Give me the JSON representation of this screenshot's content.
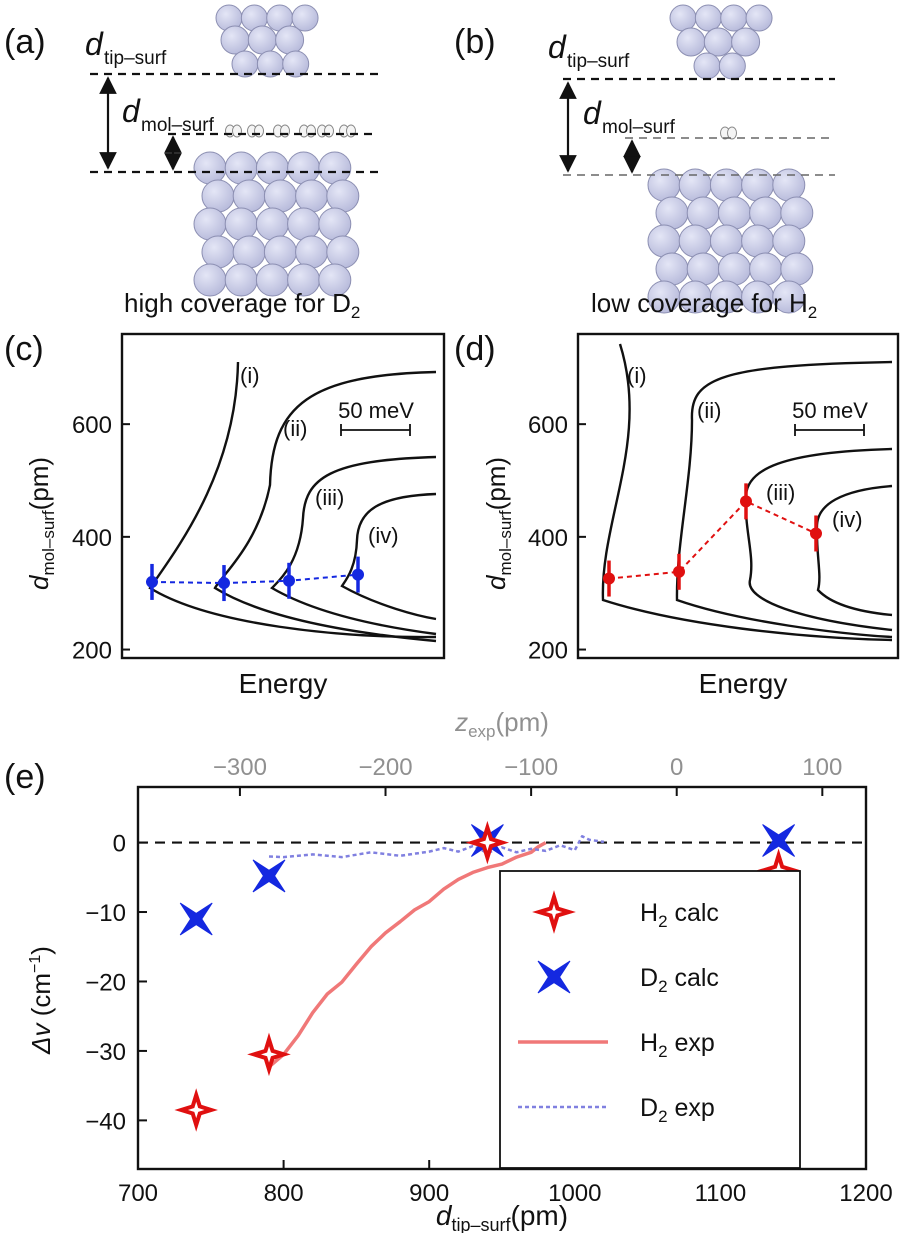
{
  "panels": {
    "a": {
      "label": "(a)",
      "caption": "high coverage for D",
      "caption_sub": "2"
    },
    "b": {
      "label": "(b)",
      "caption": "low coverage for H",
      "caption_sub": "2"
    },
    "c": {
      "label": "(c)"
    },
    "d": {
      "label": "(d)"
    },
    "e": {
      "label": "(e)"
    }
  },
  "symbols": {
    "d": "d",
    "tip_surf": "tip–surf",
    "mol_surf": "mol–surf"
  },
  "colors": {
    "atom_fill": "#c8cae6",
    "atom_stroke": "#8c8fb2",
    "red": "#e01010",
    "blue": "#1428e0",
    "h2_exp": "#f07878",
    "d2_exp": "#8080e0",
    "top_axis_gray": "#909090"
  },
  "chart_data": [
    {
      "id": "c",
      "type": "line",
      "ylabel_main": "d",
      "ylabel_sub": "mol–surf",
      "ylabel_unit": "(pm)",
      "xlabel": "Energy",
      "yticks": [
        200,
        400,
        600
      ],
      "ylim": [
        185,
        760
      ],
      "scalebar": "50 meV",
      "curve_labels": [
        "(i)",
        "(ii)",
        "(iii)",
        "(iv)"
      ],
      "points_pm": [
        320,
        318,
        322,
        333
      ],
      "point_color": "blue"
    },
    {
      "id": "d",
      "type": "line",
      "ylabel_main": "d",
      "ylabel_sub": "mol–surf",
      "ylabel_unit": "(pm)",
      "xlabel": "Energy",
      "yticks": [
        200,
        400,
        600
      ],
      "ylim": [
        185,
        760
      ],
      "scalebar": "50 meV",
      "curve_labels": [
        "(i)",
        "(ii)",
        "(iii)",
        "(iv)"
      ],
      "points_pm": [
        326,
        338,
        463,
        406
      ],
      "point_color": "red"
    },
    {
      "id": "e",
      "type": "scatter",
      "xlabel_main": "d",
      "xlabel_sub": "tip–surf",
      "xlabel_unit": "(pm)",
      "ylabel_main": "Δv",
      "ylabel_unit": "(cm",
      "ylabel_sup": "−1",
      "ylabel_close": ")",
      "top_label_main": "z",
      "top_label_sub": "exp",
      "top_label_unit": "(pm)",
      "xlim": [
        700,
        1200
      ],
      "ylim": [
        -47,
        8
      ],
      "xticks": [
        700,
        800,
        900,
        1000,
        1100,
        1200
      ],
      "yticks": [
        0,
        -10,
        -20,
        -30,
        -40
      ],
      "top_ticks": [
        -300,
        -200,
        -100,
        0,
        100
      ],
      "top_offset": 1070,
      "series": [
        {
          "name": "H₂ calc",
          "legend_main": "H",
          "legend_sub": "2",
          "legend_rest": " calc",
          "kind": "calc",
          "color": "red",
          "x": [
            740,
            790,
            940,
            1140
          ],
          "y": [
            -38.5,
            -30.5,
            0,
            -4
          ]
        },
        {
          "name": "D₂ calc",
          "legend_main": "D",
          "legend_sub": "2",
          "legend_rest": " calc",
          "kind": "calc",
          "color": "blue",
          "x": [
            740,
            790,
            940,
            1140
          ],
          "y": [
            -11,
            -4.8,
            0.3,
            0.3
          ]
        },
        {
          "name": "H₂ exp",
          "legend_main": "H",
          "legend_sub": "2",
          "legend_rest": " exp",
          "kind": "exp",
          "color": "h2_exp",
          "x": [
            790,
            800,
            810,
            820,
            830,
            840,
            850,
            860,
            870,
            880,
            890,
            900,
            910,
            920,
            930,
            940,
            950,
            960,
            970,
            975,
            980
          ],
          "y": [
            -32.3,
            -30.5,
            -27.8,
            -24.5,
            -21.8,
            -20.1,
            -17.5,
            -15,
            -13,
            -11.4,
            -9.7,
            -8.5,
            -6.7,
            -5.3,
            -4.3,
            -3.6,
            -3.1,
            -2.1,
            -1.4,
            -0.6,
            0
          ]
        },
        {
          "name": "D₂ exp",
          "legend_main": "D",
          "legend_sub": "2",
          "legend_rest": " exp",
          "kind": "exp_dash",
          "color": "d2_exp",
          "x": [
            790,
            800,
            820,
            840,
            860,
            880,
            900,
            910,
            920,
            930,
            940,
            950,
            960,
            970,
            980,
            990,
            1000,
            1005,
            1010,
            1020
          ],
          "y": [
            -2.0,
            -2.1,
            -1.7,
            -2.1,
            -1.4,
            -1.9,
            -1.3,
            -0.8,
            -1.3,
            -0.5,
            -1.5,
            -0.7,
            -1.4,
            -0.9,
            -1.2,
            -0.4,
            -1.1,
            0.9,
            0.4,
            0.1
          ]
        }
      ]
    }
  ]
}
